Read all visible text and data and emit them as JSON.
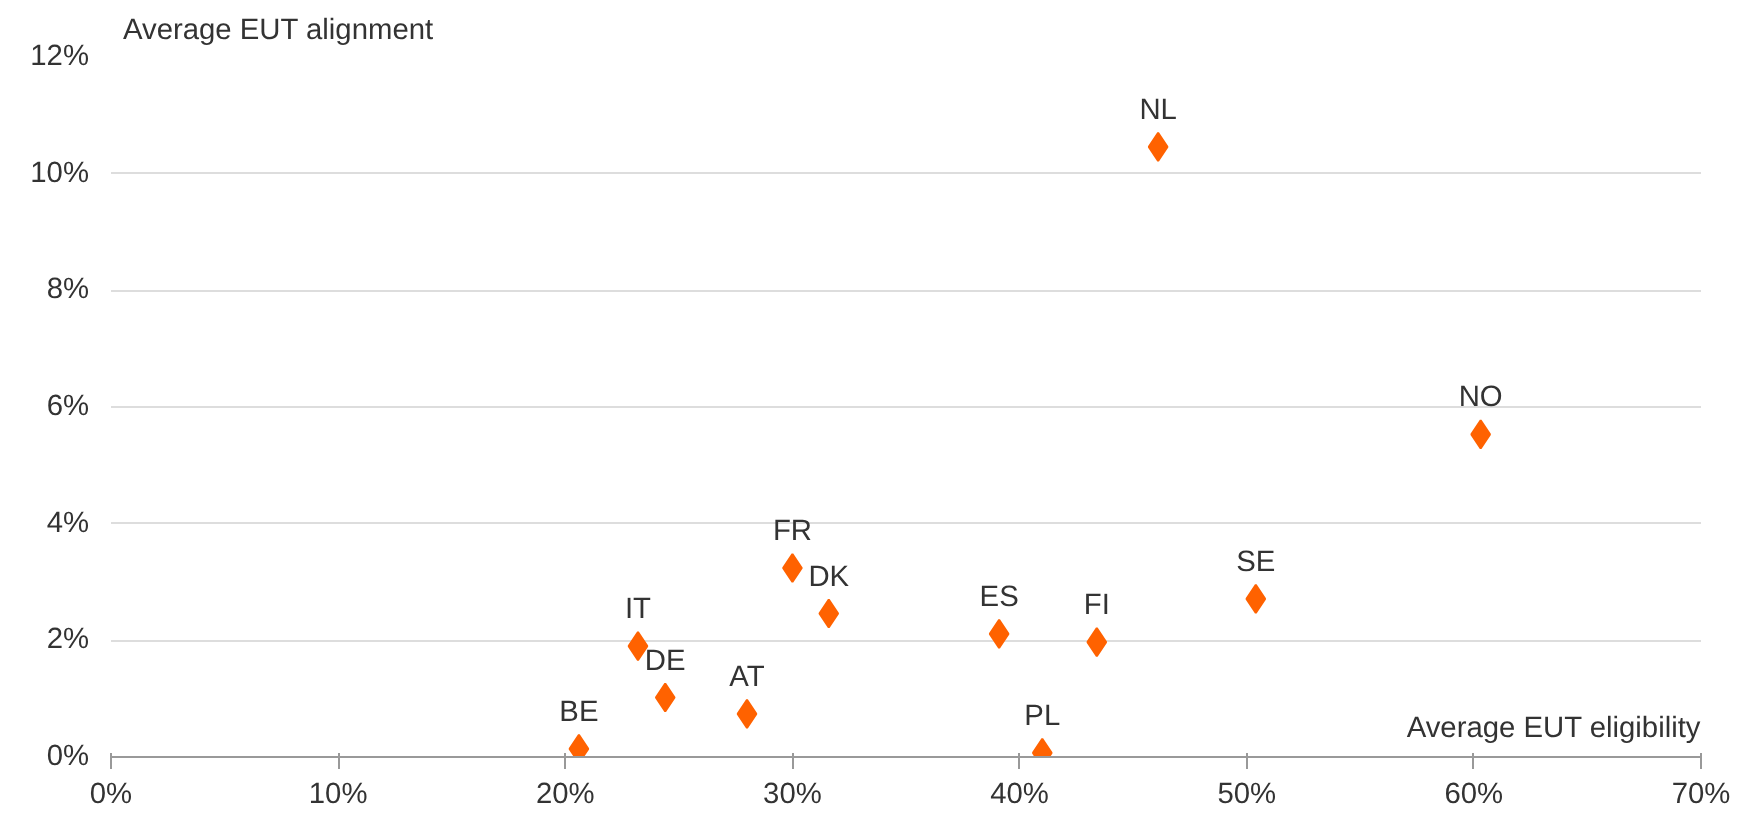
{
  "chart_data": {
    "type": "scatter",
    "xlabel": "Average EUT eligibility",
    "ylabel": "Average EUT alignment",
    "x": [
      20.6,
      23.2,
      24.4,
      28.0,
      30.0,
      31.6,
      39.1,
      41.0,
      43.4,
      50.4,
      46.1,
      60.3
    ],
    "series": [
      {
        "color": "#ff6200",
        "values": [
          0.14,
          1.9,
          1.02,
          0.74,
          3.24,
          2.46,
          2.11,
          0.07,
          1.97,
          2.71,
          10.46,
          5.53
        ]
      }
    ],
    "annotations": [
      {
        "text": "BE",
        "x": 20.6,
        "y": 0.14
      },
      {
        "text": "IT",
        "x": 23.2,
        "y": 1.9
      },
      {
        "text": "DE",
        "x": 24.4,
        "y": 1.02
      },
      {
        "text": "AT",
        "x": 28.0,
        "y": 0.74
      },
      {
        "text": "FR",
        "x": 30.0,
        "y": 3.24
      },
      {
        "text": "DK",
        "x": 31.6,
        "y": 2.46
      },
      {
        "text": "ES",
        "x": 39.1,
        "y": 2.11
      },
      {
        "text": "PL",
        "x": 41.0,
        "y": 0.07
      },
      {
        "text": "FI",
        "x": 43.4,
        "y": 1.97
      },
      {
        "text": "SE",
        "x": 50.4,
        "y": 2.71
      },
      {
        "text": "NL",
        "x": 46.1,
        "y": 10.46
      },
      {
        "text": "NO",
        "x": 60.3,
        "y": 5.53
      }
    ],
    "xlim": [
      0,
      70
    ],
    "ylim": [
      0,
      12
    ],
    "xticks": [
      {
        "value": 0,
        "label": "0%"
      },
      {
        "value": 10,
        "label": "10%"
      },
      {
        "value": 20,
        "label": "20%"
      },
      {
        "value": 30,
        "label": "30%"
      },
      {
        "value": 40,
        "label": "40%"
      },
      {
        "value": 50,
        "label": "50%"
      },
      {
        "value": 60,
        "label": "60%"
      },
      {
        "value": 70,
        "label": "70%"
      }
    ],
    "yticks": [
      {
        "value": 0,
        "label": "0%"
      },
      {
        "value": 2,
        "label": "2%"
      },
      {
        "value": 4,
        "label": "4%"
      },
      {
        "value": 6,
        "label": "6%"
      },
      {
        "value": 8,
        "label": "8%"
      },
      {
        "value": 10,
        "label": "10%"
      },
      {
        "value": 12,
        "label": "12%"
      }
    ],
    "grid": "y",
    "marker": "diamond"
  }
}
